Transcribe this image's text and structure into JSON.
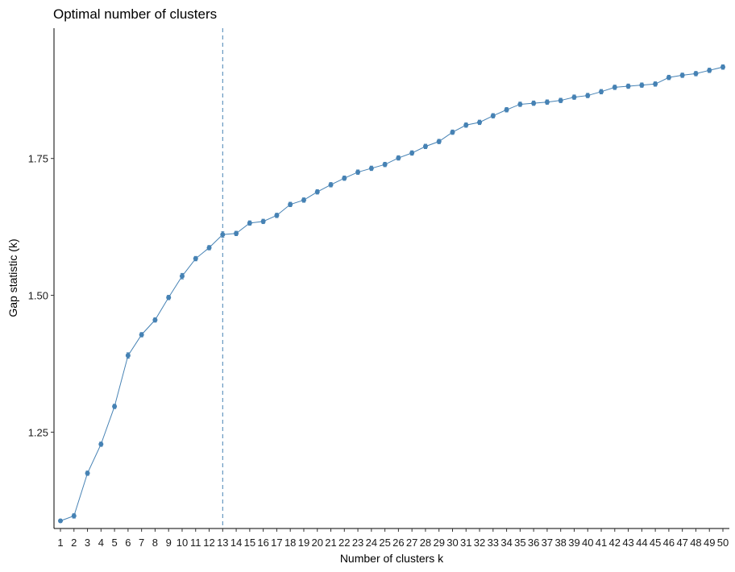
{
  "chart_data": {
    "type": "line",
    "title": "Optimal number of clusters",
    "xlabel": "Number of clusters k",
    "ylabel": "Gap statistic (k)",
    "ylim": [
      1.074,
      1.988
    ],
    "yticks": [
      1.25,
      1.5,
      1.75
    ],
    "ytick_labels": [
      "1.25",
      "1.50",
      "1.75"
    ],
    "grid": false,
    "legend": "none",
    "optimal_k": 13,
    "categories": [
      "1",
      "2",
      "3",
      "4",
      "5",
      "6",
      "7",
      "8",
      "9",
      "10",
      "11",
      "12",
      "13",
      "14",
      "15",
      "16",
      "17",
      "18",
      "19",
      "20",
      "21",
      "22",
      "23",
      "24",
      "25",
      "26",
      "27",
      "28",
      "29",
      "30",
      "31",
      "32",
      "33",
      "34",
      "35",
      "36",
      "37",
      "38",
      "39",
      "40",
      "41",
      "42",
      "43",
      "44",
      "45",
      "46",
      "47",
      "48",
      "49",
      "50"
    ],
    "series": [
      {
        "values": [
          1.088,
          1.097,
          1.175,
          1.228,
          1.297,
          1.39,
          1.428,
          1.455,
          1.496,
          1.535,
          1.567,
          1.587,
          1.611,
          1.613,
          1.632,
          1.635,
          1.646,
          1.666,
          1.674,
          1.689,
          1.702,
          1.714,
          1.725,
          1.732,
          1.739,
          1.751,
          1.76,
          1.772,
          1.781,
          1.798,
          1.811,
          1.816,
          1.828,
          1.839,
          1.849,
          1.851,
          1.853,
          1.856,
          1.862,
          1.865,
          1.872,
          1.88,
          1.882,
          1.884,
          1.886,
          1.898,
          1.902,
          1.905,
          1.911,
          1.917
        ],
        "errors": [
          0.003,
          0.004,
          0.004,
          0.004,
          0.004,
          0.005,
          0.004,
          0.004,
          0.004,
          0.005,
          0.004,
          0.004,
          0.005,
          0.004,
          0.004,
          0.004,
          0.004,
          0.004,
          0.004,
          0.004,
          0.004,
          0.004,
          0.004,
          0.004,
          0.004,
          0.004,
          0.004,
          0.004,
          0.004,
          0.004,
          0.004,
          0.004,
          0.004,
          0.004,
          0.004,
          0.004,
          0.004,
          0.004,
          0.004,
          0.004,
          0.004,
          0.004,
          0.004,
          0.004,
          0.004,
          0.004,
          0.004,
          0.004,
          0.004,
          0.004
        ]
      }
    ],
    "colors": {
      "series": "#4682B4",
      "vline": "#4682B4",
      "axis": "#000000"
    }
  }
}
